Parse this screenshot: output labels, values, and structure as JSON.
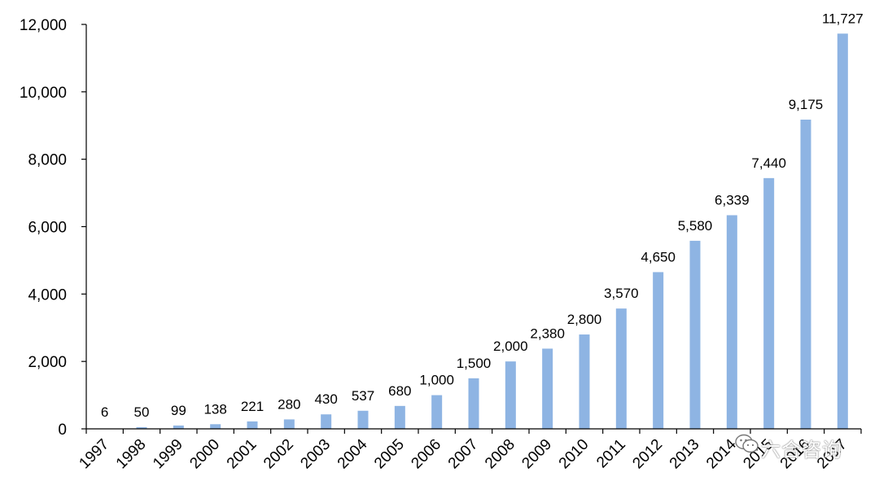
{
  "chart_data": {
    "type": "bar",
    "title": "",
    "xlabel": "",
    "ylabel": "",
    "ylim": [
      0,
      12000
    ],
    "yticks": [
      0,
      2000,
      4000,
      6000,
      8000,
      10000,
      12000
    ],
    "ytick_labels": [
      "0",
      "2,000",
      "4,000",
      "6,000",
      "8,000",
      "10,000",
      "12,000"
    ],
    "categories": [
      "1997",
      "1998",
      "1999",
      "2000",
      "2001",
      "2002",
      "2003",
      "2004",
      "2005",
      "2006",
      "2007",
      "2008",
      "2009",
      "2010",
      "2011",
      "2012",
      "2013",
      "2014",
      "2015",
      "2016",
      "2017"
    ],
    "values": [
      6,
      50,
      99,
      138,
      221,
      280,
      430,
      537,
      680,
      1000,
      1500,
      2000,
      2380,
      2800,
      3570,
      4650,
      5580,
      6339,
      7440,
      9175,
      11727
    ],
    "value_labels": [
      "6",
      "50",
      "99",
      "138",
      "221",
      "280",
      "430",
      "537",
      "680",
      "1,000",
      "1,500",
      "2,000",
      "2,380",
      "2,800",
      "3,570",
      "4,650",
      "5,580",
      "6,339",
      "7,440",
      "9,175",
      "11,727"
    ],
    "bar_color": "#8EB4E3",
    "grid": false
  },
  "watermark": {
    "text": "六合咨询",
    "icon": "wechat-icon"
  }
}
